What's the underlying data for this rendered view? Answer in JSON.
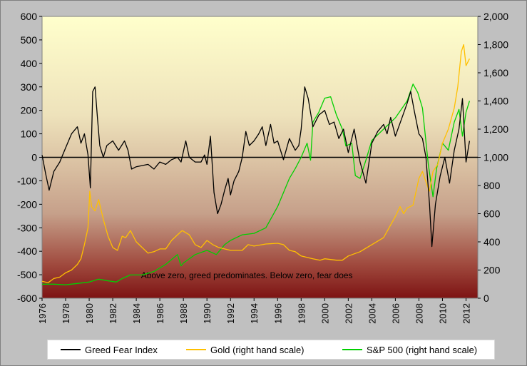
{
  "chart_data": {
    "type": "line",
    "title": "",
    "annotation": "Above zero, greed predominates. Below zero, fear does",
    "left_axis": {
      "min": -600,
      "max": 600,
      "ticks": [
        600,
        500,
        400,
        300,
        200,
        100,
        0,
        -100,
        -200,
        -300,
        -400,
        -500,
        -600
      ],
      "tick_labels": [
        "600",
        "500",
        "400",
        "300",
        "200",
        "100",
        "0",
        "-100",
        "-200",
        "-300",
        "-400",
        "-500",
        "-600"
      ]
    },
    "right_axis": {
      "min": 0,
      "max": 2000,
      "ticks": [
        2000,
        1800,
        1600,
        1400,
        1200,
        1000,
        800,
        600,
        400,
        200,
        0
      ],
      "tick_labels": [
        "2,000",
        "1,800",
        "1,600",
        "1,400",
        "1,200",
        "1,000",
        "800",
        "600",
        "400",
        "200",
        "0"
      ]
    },
    "x_axis": {
      "min": 1976,
      "max": 2013,
      "ticks": [
        1976,
        1978,
        1980,
        1982,
        1984,
        1986,
        1988,
        1990,
        1992,
        1994,
        1996,
        1998,
        2000,
        2002,
        2004,
        2006,
        2008,
        2010,
        2012
      ],
      "tick_labels": [
        "1976",
        "1978",
        "1980",
        "1982",
        "1984",
        "1986",
        "1988",
        "1990",
        "1992",
        "1994",
        "1996",
        "1998",
        "2000",
        "2002",
        "2004",
        "2006",
        "2008",
        "2010",
        "2012"
      ]
    },
    "series": [
      {
        "name": "Greed Fear Index",
        "axis": "left",
        "color": "#000000",
        "x": [
          1976.0,
          1976.3,
          1976.6,
          1977.0,
          1977.5,
          1978.0,
          1978.5,
          1979.0,
          1979.3,
          1979.6,
          1979.9,
          1980.1,
          1980.3,
          1980.5,
          1980.7,
          1980.9,
          1981.2,
          1981.5,
          1982.0,
          1982.5,
          1983.0,
          1983.3,
          1983.6,
          1984.0,
          1985.0,
          1985.5,
          1986.0,
          1986.5,
          1987.0,
          1987.5,
          1987.8,
          1988.2,
          1988.5,
          1989.0,
          1989.5,
          1989.8,
          1990.0,
          1990.3,
          1990.6,
          1990.9,
          1991.2,
          1991.5,
          1991.8,
          1992.0,
          1992.3,
          1992.7,
          1993.0,
          1993.3,
          1993.6,
          1994.0,
          1994.4,
          1994.7,
          1995.0,
          1995.4,
          1995.7,
          1996.0,
          1996.5,
          1997.0,
          1997.5,
          1997.8,
          1998.0,
          1998.3,
          1998.6,
          1999.0,
          1999.5,
          2000.0,
          2000.4,
          2000.8,
          2001.2,
          2001.6,
          2002.0,
          2002.5,
          2003.0,
          2003.5,
          2004.0,
          2004.5,
          2005.0,
          2005.3,
          2005.6,
          2006.0,
          2006.5,
          2007.0,
          2007.3,
          2007.6,
          2008.0,
          2008.3,
          2008.6,
          2008.9,
          2009.1,
          2009.4,
          2009.8,
          2010.2,
          2010.6,
          2011.0,
          2011.4,
          2011.7,
          2012.0,
          2012.3
        ],
        "values": [
          10,
          -70,
          -140,
          -60,
          -20,
          40,
          100,
          130,
          60,
          100,
          10,
          -130,
          280,
          300,
          170,
          50,
          0,
          50,
          70,
          30,
          70,
          30,
          -50,
          -40,
          -30,
          -50,
          -20,
          -30,
          -10,
          0,
          -20,
          70,
          0,
          -20,
          -20,
          10,
          -30,
          90,
          -150,
          -240,
          -200,
          -140,
          -90,
          -160,
          -100,
          -60,
          0,
          110,
          50,
          70,
          100,
          130,
          50,
          140,
          60,
          70,
          -10,
          80,
          30,
          50,
          120,
          300,
          250,
          130,
          180,
          200,
          140,
          150,
          80,
          120,
          20,
          120,
          -20,
          -110,
          60,
          110,
          140,
          100,
          170,
          90,
          160,
          230,
          280,
          200,
          100,
          80,
          0,
          -200,
          -380,
          -200,
          -80,
          0,
          -110,
          30,
          120,
          250,
          -20,
          70
        ]
      },
      {
        "name": "Gold (right hand scale)",
        "axis": "right",
        "color": "#ffc000",
        "x": [
          1976.0,
          1976.5,
          1977.0,
          1977.5,
          1978.0,
          1978.5,
          1979.0,
          1979.3,
          1979.6,
          1979.9,
          1980.05,
          1980.2,
          1980.5,
          1980.8,
          1981.2,
          1981.6,
          1982.0,
          1982.4,
          1982.8,
          1983.1,
          1983.5,
          1984.0,
          1985.0,
          1985.5,
          1986.0,
          1986.5,
          1987.0,
          1987.5,
          1987.9,
          1988.5,
          1989.0,
          1989.5,
          1990.0,
          1990.5,
          1991.0,
          1992.0,
          1993.0,
          1993.5,
          1994.0,
          1995.0,
          1996.0,
          1996.5,
          1997.0,
          1997.5,
          1998.0,
          1999.0,
          1999.6,
          2000.0,
          2001.0,
          2001.5,
          2002.0,
          2003.0,
          2004.0,
          2005.0,
          2006.0,
          2006.4,
          2006.7,
          2007.0,
          2007.5,
          2008.0,
          2008.3,
          2008.7,
          2008.9,
          2009.2,
          2009.6,
          2010.0,
          2010.5,
          2011.0,
          2011.3,
          2011.6,
          2011.8,
          2012.0,
          2012.3
        ],
        "values": [
          120,
          110,
          140,
          150,
          180,
          200,
          240,
          280,
          380,
          500,
          760,
          650,
          620,
          700,
          560,
          440,
          360,
          340,
          440,
          430,
          480,
          400,
          320,
          330,
          350,
          350,
          410,
          450,
          480,
          450,
          380,
          360,
          410,
          380,
          360,
          340,
          340,
          380,
          370,
          385,
          390,
          380,
          340,
          330,
          300,
          280,
          270,
          280,
          270,
          270,
          300,
          330,
          380,
          430,
          580,
          650,
          600,
          640,
          660,
          850,
          900,
          800,
          760,
          900,
          950,
          1100,
          1200,
          1350,
          1500,
          1750,
          1800,
          1650,
          1700
        ]
      },
      {
        "name": "S&P 500 (right hand scale)",
        "axis": "right",
        "color": "#00d000",
        "x": [
          1976.0,
          1977.0,
          1978.0,
          1979.0,
          1980.0,
          1980.8,
          1981.5,
          1982.3,
          1982.8,
          1983.5,
          1984.5,
          1985.5,
          1986.5,
          1987.5,
          1987.8,
          1988.0,
          1989.0,
          1990.0,
          1990.8,
          1991.5,
          1992.0,
          1993.0,
          1994.0,
          1995.0,
          1996.0,
          1997.0,
          1997.5,
          1998.0,
          1998.5,
          1998.8,
          1999.0,
          1999.5,
          2000.0,
          2000.5,
          2001.0,
          2001.5,
          2001.8,
          2002.3,
          2002.6,
          2003.0,
          2003.5,
          2004.0,
          2005.0,
          2006.0,
          2007.0,
          2007.5,
          2007.9,
          2008.3,
          2008.8,
          2009.2,
          2009.5,
          2010.0,
          2010.5,
          2011.0,
          2011.4,
          2011.7,
          2012.0,
          2012.3
        ],
        "values": [
          100,
          100,
          95,
          105,
          115,
          135,
          125,
          115,
          140,
          165,
          165,
          190,
          240,
          310,
          230,
          250,
          310,
          340,
          310,
          380,
          410,
          450,
          460,
          500,
          650,
          850,
          920,
          1000,
          1100,
          980,
          1250,
          1320,
          1420,
          1430,
          1300,
          1200,
          1080,
          1100,
          870,
          850,
          980,
          1120,
          1200,
          1280,
          1400,
          1520,
          1460,
          1350,
          950,
          720,
          920,
          1100,
          1050,
          1250,
          1340,
          1150,
          1320,
          1400
        ]
      }
    ],
    "legend": {
      "position": "bottom",
      "items": [
        "Greed Fear Index",
        "Gold (right hand scale)",
        "S&P 500 (right hand scale)"
      ]
    },
    "grid": false
  }
}
